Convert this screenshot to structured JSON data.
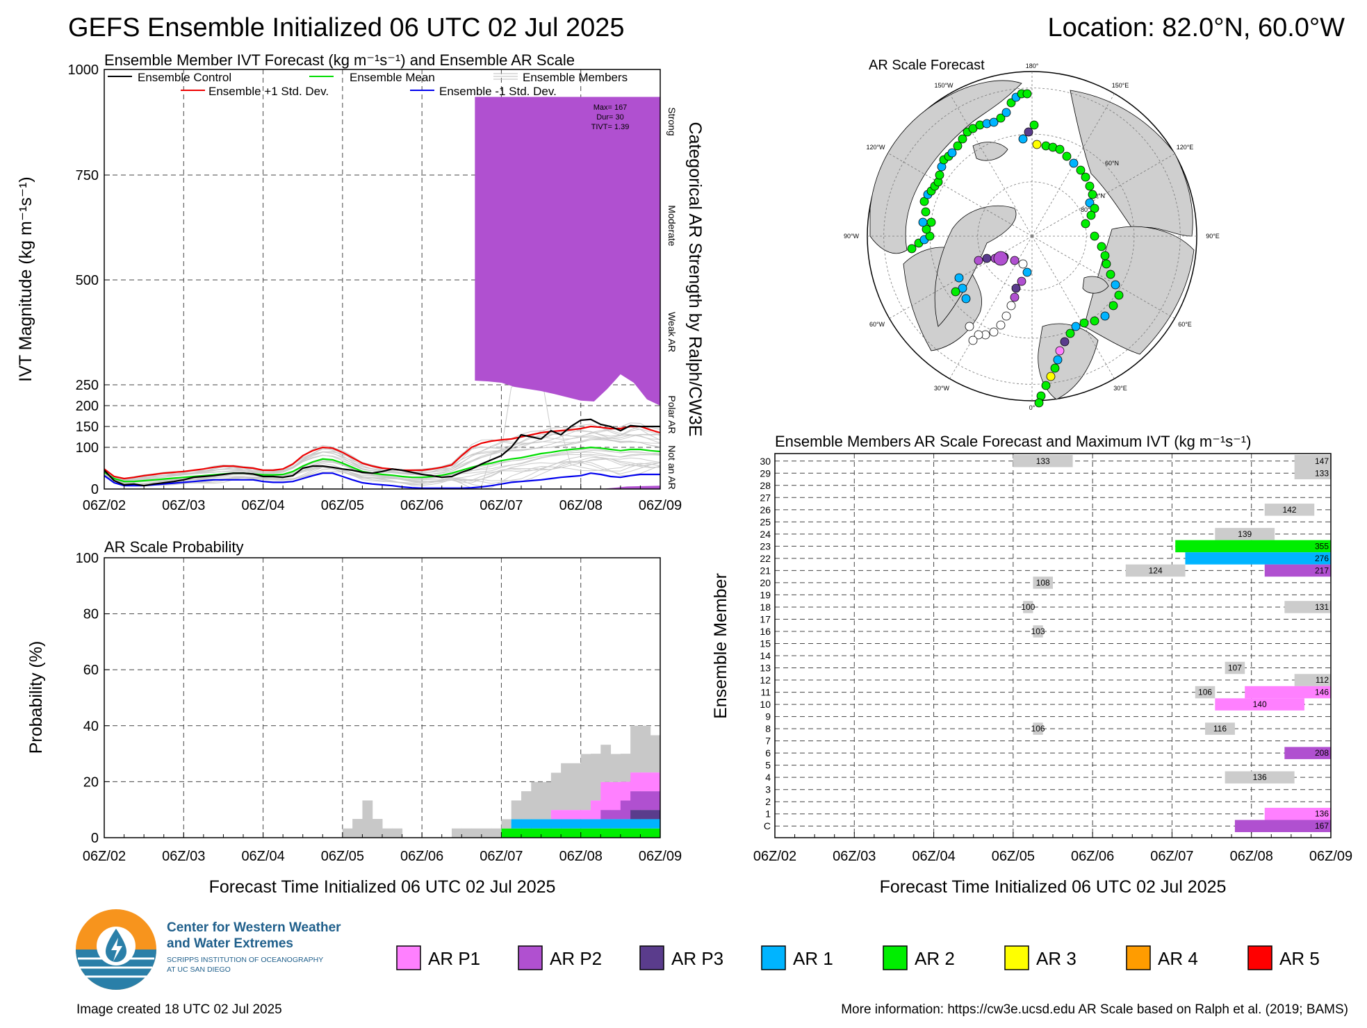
{
  "header": {
    "title": "GEFS Ensemble Initialized 06 UTC 02 Jul 2025",
    "location": "Location: 82.0°N, 60.0°W"
  },
  "ivt_panel": {
    "title": "Ensemble Member IVT Forecast (kg m⁻¹s⁻¹) and Ensemble AR Scale",
    "ylabel": "IVT Magnitude (kg m⁻¹s⁻¹)",
    "right_label": "Categorical AR Strength by Ralph/CW3E",
    "categories": [
      "Strong",
      "Moderate",
      "Weak AR",
      "Polar AR",
      "Not an AR"
    ],
    "legend": {
      "control": "Ensemble Control",
      "mean": "Ensemble Mean",
      "members": "Ensemble Members",
      "plus": "Ensemble +1 Std. Dev.",
      "minus": "Ensemble -1 Std. Dev."
    },
    "stats": [
      "Max= 167",
      "Dur= 30",
      "TIVT= 1.39"
    ]
  },
  "prob_panel": {
    "title": "AR Scale Probability",
    "ylabel": "Probability (%)",
    "xlabel": "Forecast Time Initialized 06 UTC 02 Jul 2025"
  },
  "map_panel": {
    "title": "AR Scale Forecast",
    "lon_labels": [
      "180°",
      "150°W",
      "150°E",
      "120°W",
      "120°E",
      "90°W",
      "90°E",
      "60°W",
      "60°E",
      "30°W",
      "30°E",
      "0°",
      "60°N",
      "70°N",
      "80°N"
    ]
  },
  "member_panel": {
    "title": "Ensemble Members AR Scale Forecast and Maximum IVT (kg m⁻¹s⁻¹)",
    "ylabel": "Ensemble Member",
    "xlabel": "Forecast Time Initialized 06 UTC 02 Jul 2025"
  },
  "legend": [
    {
      "label": "AR P1",
      "color": "#ff80ff"
    },
    {
      "label": "AR P2",
      "color": "#b050d0"
    },
    {
      "label": "AR P3",
      "color": "#5a3c8c"
    },
    {
      "label": "AR 1",
      "color": "#00b4ff"
    },
    {
      "label": "AR 2",
      "color": "#00ee00"
    },
    {
      "label": "AR 3",
      "color": "#ffff00"
    },
    {
      "label": "AR 4",
      "color": "#ff9c00"
    },
    {
      "label": "AR 5",
      "color": "#ff0000"
    }
  ],
  "footer": {
    "org_line1": "Center for Western Weather",
    "org_line2": "and Water Extremes",
    "org_line3": "SCRIPPS INSTITUTION OF OCEANOGRAPHY",
    "org_line4": "AT UC SAN DIEGO",
    "created": "Image created 18 UTC 02 Jul 2025",
    "more_info": "More information: https://cw3e.ucsd.edu AR Scale based on Ralph et al. (2019; BAMS)"
  },
  "chart_data": [
    {
      "type": "line",
      "title": "Ensemble Member IVT Forecast (kg m⁻¹s⁻¹) and Ensemble AR Scale",
      "xlabel": "",
      "ylabel": "IVT Magnitude (kg m⁻¹s⁻¹)",
      "x_ticks": [
        "06Z/02",
        "06Z/03",
        "06Z/04",
        "06Z/05",
        "06Z/06",
        "06Z/07",
        "06Z/08",
        "06Z/09"
      ],
      "y_ticks": [
        0,
        100,
        150,
        200,
        250,
        500,
        750,
        1000
      ],
      "ylim": [
        0,
        1000
      ],
      "xlim_hours": [
        0,
        168
      ],
      "x_hours": [
        0,
        3,
        6,
        9,
        12,
        15,
        18,
        21,
        24,
        27,
        30,
        33,
        36,
        39,
        42,
        45,
        48,
        51,
        54,
        57,
        60,
        63,
        66,
        69,
        72,
        75,
        78,
        81,
        84,
        87,
        90,
        93,
        96,
        99,
        102,
        105,
        108,
        111,
        114,
        117,
        120,
        123,
        126,
        129,
        132,
        135,
        138,
        141,
        144,
        147,
        150,
        153,
        156,
        159,
        162,
        165,
        168
      ],
      "series": [
        {
          "name": "Ensemble Control",
          "color": "#000000",
          "values": [
            45,
            20,
            10,
            12,
            8,
            12,
            15,
            18,
            22,
            28,
            30,
            32,
            35,
            38,
            38,
            36,
            30,
            30,
            28,
            32,
            50,
            55,
            55,
            52,
            48,
            45,
            40,
            38,
            42,
            48,
            45,
            40,
            35,
            32,
            28,
            30,
            40,
            48,
            60,
            70,
            80,
            100,
            130,
            125,
            120,
            140,
            130,
            150,
            165,
            167,
            155,
            150,
            140,
            152,
            150,
            150,
            150
          ]
        },
        {
          "name": "Ensemble Mean",
          "color": "#00dd00",
          "values": [
            40,
            25,
            18,
            18,
            20,
            22,
            24,
            26,
            28,
            30,
            32,
            34,
            36,
            38,
            38,
            36,
            34,
            34,
            35,
            42,
            55,
            65,
            72,
            70,
            62,
            52,
            42,
            38,
            35,
            33,
            30,
            28,
            28,
            30,
            33,
            38,
            45,
            52,
            58,
            62,
            68,
            72,
            75,
            80,
            85,
            88,
            92,
            95,
            97,
            100,
            98,
            95,
            92,
            95,
            95,
            92,
            90
          ]
        },
        {
          "name": "Ensemble +1 Std. Dev.",
          "color": "#ee0000",
          "values": [
            48,
            30,
            25,
            28,
            32,
            35,
            38,
            40,
            42,
            45,
            48,
            52,
            55,
            55,
            52,
            50,
            45,
            45,
            48,
            60,
            80,
            92,
            100,
            98,
            88,
            75,
            62,
            55,
            50,
            48,
            45,
            45,
            45,
            48,
            52,
            58,
            80,
            100,
            110,
            115,
            118,
            120,
            125,
            130,
            135,
            138,
            140,
            142,
            145,
            150,
            148,
            145,
            145,
            150,
            150,
            142,
            135
          ]
        },
        {
          "name": "Ensemble -1 Std. Dev.",
          "color": "#0000ee",
          "values": [
            32,
            15,
            8,
            8,
            8,
            10,
            12,
            14,
            16,
            18,
            20,
            22,
            22,
            22,
            22,
            22,
            18,
            16,
            16,
            18,
            25,
            32,
            38,
            38,
            30,
            22,
            15,
            12,
            10,
            8,
            5,
            3,
            2,
            2,
            2,
            2,
            2,
            3,
            5,
            8,
            12,
            16,
            18,
            20,
            22,
            25,
            28,
            30,
            32,
            38,
            35,
            30,
            28,
            32,
            35,
            35,
            35
          ]
        }
      ],
      "ar_shading": {
        "label": "AR P2",
        "color": "#b050d0",
        "x_hours": [
          112,
          116,
          120,
          124,
          128,
          132,
          136,
          140,
          144,
          148,
          152,
          156,
          160,
          164,
          168
        ],
        "upper": [
          935,
          935,
          935,
          935,
          935,
          935,
          935,
          935,
          935,
          935,
          935,
          935,
          935,
          935,
          935
        ],
        "lower": [
          260,
          258,
          255,
          245,
          240,
          235,
          228,
          220,
          212,
          210,
          240,
          275,
          255,
          215,
          200
        ]
      },
      "stats": {
        "max": 167,
        "duration_hours": 30,
        "tivt": 1.39
      }
    },
    {
      "type": "area",
      "title": "AR Scale Probability",
      "ylabel": "Probability (%)",
      "xlabel": "Forecast Time Initialized 06 UTC 02 Jul 2025",
      "x_ticks": [
        "06Z/02",
        "06Z/03",
        "06Z/04",
        "06Z/05",
        "06Z/06",
        "06Z/07",
        "06Z/08",
        "06Z/09"
      ],
      "y_ticks": [
        0,
        20,
        40,
        60,
        80,
        100
      ],
      "ylim": [
        0,
        100
      ],
      "step_hours": 3,
      "bins_start_hour": [
        72,
        75,
        78,
        81,
        84,
        87,
        105,
        108,
        111,
        114,
        117,
        120,
        123,
        126,
        129,
        132,
        135,
        138,
        141,
        144,
        147,
        150,
        153,
        156,
        159,
        162,
        165
      ],
      "series": [
        {
          "name": "AR 2",
          "color": "#00ee00",
          "values": [
            0,
            0,
            0,
            0,
            0,
            0,
            0,
            0,
            0,
            0,
            0,
            3.3,
            3.3,
            3.3,
            3.3,
            3.3,
            3.3,
            3.3,
            3.3,
            3.3,
            3.3,
            3.3,
            3.3,
            3.3,
            3.3,
            3.3,
            3.3
          ]
        },
        {
          "name": "AR 1",
          "color": "#00b4ff",
          "values": [
            0,
            0,
            0,
            0,
            0,
            0,
            0,
            0,
            0,
            0,
            0,
            0,
            3.3,
            3.3,
            3.3,
            3.3,
            3.3,
            3.3,
            3.3,
            3.3,
            3.3,
            3.3,
            3.3,
            3.3,
            3.3,
            3.3,
            3.3
          ]
        },
        {
          "name": "AR P3",
          "color": "#5a3c8c",
          "values": [
            0,
            0,
            0,
            0,
            0,
            0,
            0,
            0,
            0,
            0,
            0,
            0,
            0,
            0,
            0,
            0,
            0,
            0,
            0,
            0,
            0,
            0,
            0,
            0,
            3.3,
            3.3,
            3.3
          ]
        },
        {
          "name": "AR P2",
          "color": "#b050d0",
          "values": [
            0,
            0,
            0,
            0,
            0,
            0,
            0,
            0,
            0,
            0,
            0,
            0,
            0,
            0,
            0,
            0,
            0,
            0,
            0,
            0,
            0,
            3.3,
            3.3,
            6.7,
            6.7,
            6.7,
            6.7
          ]
        },
        {
          "name": "AR P1",
          "color": "#ff80ff",
          "values": [
            0,
            0,
            0,
            0,
            0,
            0,
            0,
            0,
            0,
            0,
            0,
            0,
            0,
            0,
            0,
            0,
            3.3,
            3.3,
            3.3,
            3.3,
            6.7,
            10,
            10,
            6.7,
            6.7,
            6.7,
            6.7
          ]
        },
        {
          "name": "Non-AR member (gray)",
          "color": "#c8c8c8",
          "values": [
            3.3,
            6.7,
            13.3,
            6.7,
            3.3,
            3.3,
            3.3,
            3.3,
            3.3,
            3.3,
            3.3,
            3.3,
            6.7,
            10,
            13.3,
            13.3,
            13.3,
            16.7,
            16.7,
            20,
            16.7,
            13.3,
            10,
            10,
            16.7,
            16.7,
            13.3
          ]
        }
      ]
    },
    {
      "type": "bar",
      "title": "Ensemble Members AR Scale Forecast and Maximum IVT (kg m⁻¹s⁻¹)",
      "ylabel": "Ensemble Member",
      "xlabel": "Forecast Time Initialized 06 UTC 02 Jul 2025",
      "x_ticks": [
        "06Z/02",
        "06Z/03",
        "06Z/04",
        "06Z/05",
        "06Z/06",
        "06Z/07",
        "06Z/08",
        "06Z/09"
      ],
      "y_labels": [
        "C",
        "1",
        "2",
        "3",
        "4",
        "5",
        "6",
        "7",
        "8",
        "9",
        "10",
        "11",
        "12",
        "13",
        "14",
        "15",
        "16",
        "17",
        "18",
        "19",
        "20",
        "21",
        "22",
        "23",
        "24",
        "25",
        "26",
        "27",
        "28",
        "29",
        "30"
      ],
      "bars": [
        {
          "member": "30",
          "start_h": 72,
          "end_h": 90,
          "label": "133",
          "color": "#cccccc"
        },
        {
          "member": "30",
          "start_h": 157,
          "end_h": 168,
          "label": "147",
          "color": "#cccccc"
        },
        {
          "member": "29",
          "start_h": 157,
          "end_h": 168,
          "label": "133",
          "color": "#cccccc"
        },
        {
          "member": "26",
          "start_h": 148,
          "end_h": 163,
          "label": "142",
          "color": "#cccccc"
        },
        {
          "member": "24",
          "start_h": 133,
          "end_h": 151,
          "label": "139",
          "color": "#cccccc"
        },
        {
          "member": "23",
          "start_h": 121,
          "end_h": 168,
          "label": "355",
          "color": "#00ee00"
        },
        {
          "member": "22",
          "start_h": 124,
          "end_h": 168,
          "label": "276",
          "color": "#00b4ff"
        },
        {
          "member": "21",
          "start_h": 106,
          "end_h": 124,
          "label": "124",
          "color": "#cccccc"
        },
        {
          "member": "21",
          "start_h": 148,
          "end_h": 168,
          "label": "217",
          "color": "#b050d0"
        },
        {
          "member": "20",
          "start_h": 78,
          "end_h": 84,
          "label": "108",
          "color": "#cccccc"
        },
        {
          "member": "18",
          "start_h": 75,
          "end_h": 78,
          "label": "100",
          "color": "#cccccc"
        },
        {
          "member": "18",
          "start_h": 154,
          "end_h": 168,
          "label": "131",
          "color": "#cccccc"
        },
        {
          "member": "16",
          "start_h": 78,
          "end_h": 81,
          "label": "103",
          "color": "#cccccc"
        },
        {
          "member": "13",
          "start_h": 136,
          "end_h": 142,
          "label": "107",
          "color": "#cccccc"
        },
        {
          "member": "12",
          "start_h": 157,
          "end_h": 168,
          "label": "112",
          "color": "#cccccc"
        },
        {
          "member": "11",
          "start_h": 127,
          "end_h": 133,
          "label": "106",
          "color": "#cccccc"
        },
        {
          "member": "11",
          "start_h": 142,
          "end_h": 168,
          "label": "146",
          "color": "#ff80ff"
        },
        {
          "member": "10",
          "start_h": 133,
          "end_h": 160,
          "label": "140",
          "color": "#ff80ff"
        },
        {
          "member": "8",
          "start_h": 78,
          "end_h": 81,
          "label": "106",
          "color": "#cccccc"
        },
        {
          "member": "8",
          "start_h": 130,
          "end_h": 139,
          "label": "116",
          "color": "#cccccc"
        },
        {
          "member": "6",
          "start_h": 154,
          "end_h": 168,
          "label": "208",
          "color": "#b050d0"
        },
        {
          "member": "4",
          "start_h": 136,
          "end_h": 157,
          "label": "136",
          "color": "#cccccc"
        },
        {
          "member": "1",
          "start_h": 148,
          "end_h": 168,
          "label": "136",
          "color": "#ff80ff"
        },
        {
          "member": "C",
          "start_h": 139,
          "end_h": 168,
          "label": "167",
          "color": "#b050d0"
        }
      ]
    }
  ]
}
